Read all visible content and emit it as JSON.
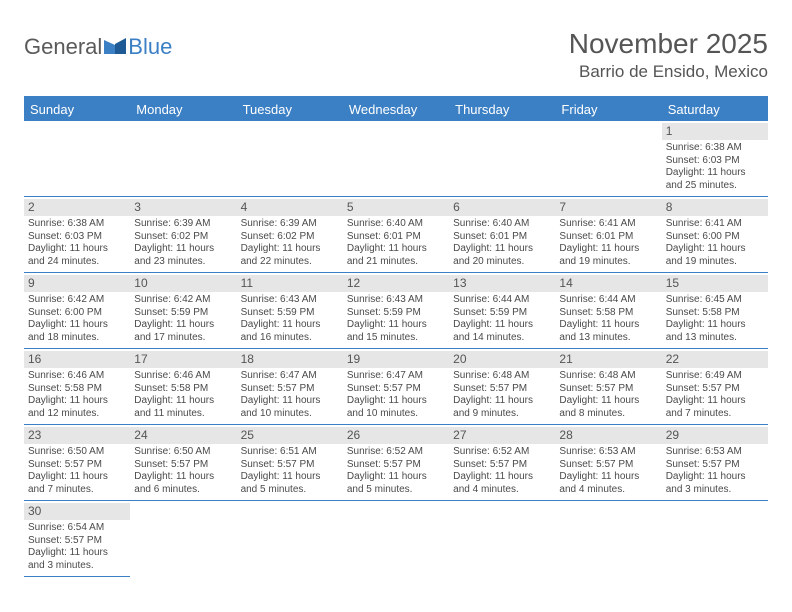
{
  "logo": {
    "text1": "General",
    "text2": "Blue"
  },
  "title": {
    "month": "November 2025",
    "location": "Barrio de Ensido, Mexico"
  },
  "colors": {
    "accent": "#3b7fc4",
    "dayNumBg": "#e6e6e6",
    "text": "#4a4a4a"
  },
  "dayHeaders": [
    "Sunday",
    "Monday",
    "Tuesday",
    "Wednesday",
    "Thursday",
    "Friday",
    "Saturday"
  ],
  "grid": {
    "leadingBlanks": 6,
    "days": [
      {
        "n": 1,
        "sr": "6:38 AM",
        "ss": "6:03 PM",
        "d": "11 hours and 25 minutes."
      },
      {
        "n": 2,
        "sr": "6:38 AM",
        "ss": "6:03 PM",
        "d": "11 hours and 24 minutes."
      },
      {
        "n": 3,
        "sr": "6:39 AM",
        "ss": "6:02 PM",
        "d": "11 hours and 23 minutes."
      },
      {
        "n": 4,
        "sr": "6:39 AM",
        "ss": "6:02 PM",
        "d": "11 hours and 22 minutes."
      },
      {
        "n": 5,
        "sr": "6:40 AM",
        "ss": "6:01 PM",
        "d": "11 hours and 21 minutes."
      },
      {
        "n": 6,
        "sr": "6:40 AM",
        "ss": "6:01 PM",
        "d": "11 hours and 20 minutes."
      },
      {
        "n": 7,
        "sr": "6:41 AM",
        "ss": "6:01 PM",
        "d": "11 hours and 19 minutes."
      },
      {
        "n": 8,
        "sr": "6:41 AM",
        "ss": "6:00 PM",
        "d": "11 hours and 19 minutes."
      },
      {
        "n": 9,
        "sr": "6:42 AM",
        "ss": "6:00 PM",
        "d": "11 hours and 18 minutes."
      },
      {
        "n": 10,
        "sr": "6:42 AM",
        "ss": "5:59 PM",
        "d": "11 hours and 17 minutes."
      },
      {
        "n": 11,
        "sr": "6:43 AM",
        "ss": "5:59 PM",
        "d": "11 hours and 16 minutes."
      },
      {
        "n": 12,
        "sr": "6:43 AM",
        "ss": "5:59 PM",
        "d": "11 hours and 15 minutes."
      },
      {
        "n": 13,
        "sr": "6:44 AM",
        "ss": "5:59 PM",
        "d": "11 hours and 14 minutes."
      },
      {
        "n": 14,
        "sr": "6:44 AM",
        "ss": "5:58 PM",
        "d": "11 hours and 13 minutes."
      },
      {
        "n": 15,
        "sr": "6:45 AM",
        "ss": "5:58 PM",
        "d": "11 hours and 13 minutes."
      },
      {
        "n": 16,
        "sr": "6:46 AM",
        "ss": "5:58 PM",
        "d": "11 hours and 12 minutes."
      },
      {
        "n": 17,
        "sr": "6:46 AM",
        "ss": "5:58 PM",
        "d": "11 hours and 11 minutes."
      },
      {
        "n": 18,
        "sr": "6:47 AM",
        "ss": "5:57 PM",
        "d": "11 hours and 10 minutes."
      },
      {
        "n": 19,
        "sr": "6:47 AM",
        "ss": "5:57 PM",
        "d": "11 hours and 10 minutes."
      },
      {
        "n": 20,
        "sr": "6:48 AM",
        "ss": "5:57 PM",
        "d": "11 hours and 9 minutes."
      },
      {
        "n": 21,
        "sr": "6:48 AM",
        "ss": "5:57 PM",
        "d": "11 hours and 8 minutes."
      },
      {
        "n": 22,
        "sr": "6:49 AM",
        "ss": "5:57 PM",
        "d": "11 hours and 7 minutes."
      },
      {
        "n": 23,
        "sr": "6:50 AM",
        "ss": "5:57 PM",
        "d": "11 hours and 7 minutes."
      },
      {
        "n": 24,
        "sr": "6:50 AM",
        "ss": "5:57 PM",
        "d": "11 hours and 6 minutes."
      },
      {
        "n": 25,
        "sr": "6:51 AM",
        "ss": "5:57 PM",
        "d": "11 hours and 5 minutes."
      },
      {
        "n": 26,
        "sr": "6:52 AM",
        "ss": "5:57 PM",
        "d": "11 hours and 5 minutes."
      },
      {
        "n": 27,
        "sr": "6:52 AM",
        "ss": "5:57 PM",
        "d": "11 hours and 4 minutes."
      },
      {
        "n": 28,
        "sr": "6:53 AM",
        "ss": "5:57 PM",
        "d": "11 hours and 4 minutes."
      },
      {
        "n": 29,
        "sr": "6:53 AM",
        "ss": "5:57 PM",
        "d": "11 hours and 3 minutes."
      },
      {
        "n": 30,
        "sr": "6:54 AM",
        "ss": "5:57 PM",
        "d": "11 hours and 3 minutes."
      }
    ]
  },
  "labels": {
    "sunrise": "Sunrise: ",
    "sunset": "Sunset: ",
    "daylight": "Daylight: "
  }
}
